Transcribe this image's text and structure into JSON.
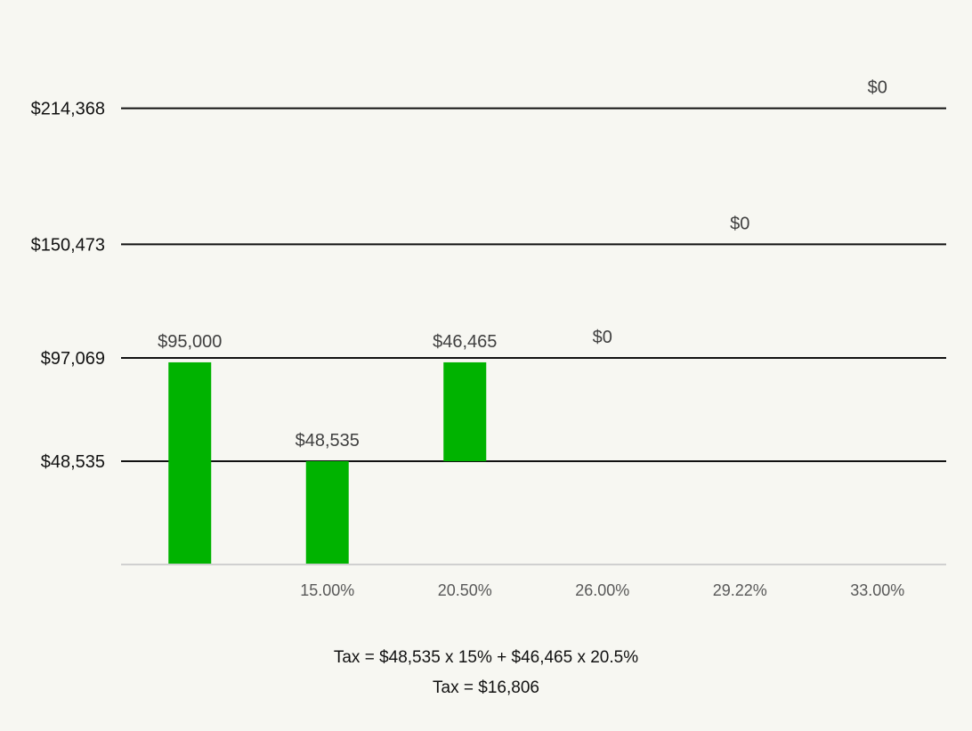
{
  "chart_data": {
    "type": "bar",
    "title": "",
    "xlabel": "",
    "ylabel": "",
    "ylim": [
      0,
      225000
    ],
    "grid": false,
    "legend": "none",
    "categories": [
      "",
      "15.00%",
      "20.50%",
      "26.00%",
      "29.22%",
      "33.00%"
    ],
    "bars": [
      {
        "category": "",
        "base": 0,
        "value": 95000,
        "label": "$95,000",
        "label_pos": "above-top"
      },
      {
        "category": "15.00%",
        "base": 0,
        "value": 48535,
        "label": "$48,535",
        "label_pos": "above-top"
      },
      {
        "category": "20.50%",
        "base": 48535,
        "value": 46465,
        "label": "$46,465",
        "label_pos": "above-top"
      },
      {
        "category": "26.00%",
        "base": 97069,
        "value": 0,
        "label": "$0",
        "label_pos": "above-base"
      },
      {
        "category": "29.22%",
        "base": 150473,
        "value": 0,
        "label": "$0",
        "label_pos": "above-base"
      },
      {
        "category": "33.00%",
        "base": 214368,
        "value": 0,
        "label": "$0",
        "label_pos": "above-base"
      }
    ],
    "bracket_lines": [
      {
        "value": 48535,
        "label": "$48,535"
      },
      {
        "value": 97069,
        "label": "$97,069"
      },
      {
        "value": 150473,
        "label": "$150,473"
      },
      {
        "value": 214368,
        "label": "$214,368"
      }
    ]
  },
  "colors": {
    "bar": "#00b300",
    "bracket_line": "#111111",
    "axis_line": "#d0d0d0"
  },
  "caption": {
    "line1": "Tax = $48,535 x 15% + $46,465 x 20.5%",
    "line2": "Tax = $16,806"
  }
}
